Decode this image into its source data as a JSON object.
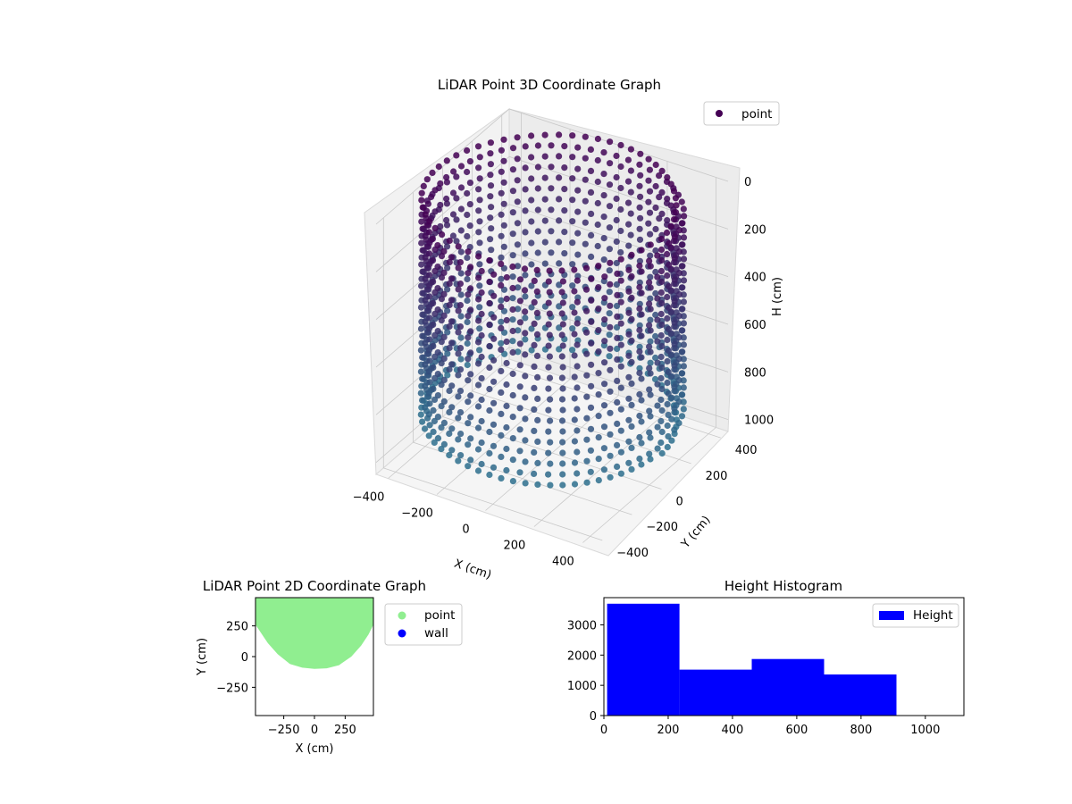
{
  "chart_data": [
    {
      "type": "scatter",
      "projection": "3d",
      "title": "LiDAR Point 3D Coordinate Graph",
      "xlabel": "X (cm)",
      "ylabel": "Y (cm)",
      "zlabel": "H (cm)",
      "x_ticks": [
        "−400",
        "−200",
        "0",
        "200",
        "400"
      ],
      "y_ticks": [
        "−400",
        "−200",
        "0",
        "200",
        "400"
      ],
      "z_ticks": [
        "0",
        "200",
        "400",
        "600",
        "800",
        "1000"
      ],
      "xlim": [
        -450,
        450
      ],
      "ylim": [
        -450,
        450
      ],
      "zlim": [
        1050,
        0
      ],
      "z_axis_inverted": true,
      "grid": true,
      "legend": {
        "placement": "top-right",
        "entries": [
          {
            "label": "point",
            "color": "#440154"
          }
        ]
      },
      "colormap": "viridis",
      "colormap_range_visible": [
        "#440154",
        "#2d708e"
      ],
      "point_cloud": {
        "shape": "cylindrical wall, open toward negative Y",
        "radius_cm": 450,
        "height_range_cm": [
          0,
          910
        ],
        "angle_range_deg": [
          0,
          360
        ]
      }
    },
    {
      "type": "scatter",
      "title": "LiDAR Point 2D Coordinate Graph",
      "xlabel": "X (cm)",
      "ylabel": "Y (cm)",
      "x_ticks": [
        "−250",
        "0",
        "250"
      ],
      "y_ticks": [
        "250",
        "0",
        "−250"
      ],
      "x_tick_values": [
        -250,
        0,
        250
      ],
      "y_tick_values": [
        250,
        0,
        -250
      ],
      "xlim": [
        -480,
        480
      ],
      "ylim": [
        -480,
        480
      ],
      "legend": {
        "placement": "outside-right",
        "entries": [
          {
            "label": "point",
            "color": "#90ee90"
          },
          {
            "label": "wall",
            "color": "#0000ff"
          }
        ]
      },
      "series": [
        {
          "name": "point",
          "color": "#90ee90",
          "region_boundary": [
            [
              -480,
              480
            ],
            [
              -480,
              260
            ],
            [
              -440,
              200
            ],
            [
              -380,
              110
            ],
            [
              -300,
              20
            ],
            [
              -200,
              -60
            ],
            [
              -100,
              -90
            ],
            [
              0,
              -100
            ],
            [
              100,
              -95
            ],
            [
              200,
              -70
            ],
            [
              300,
              0
            ],
            [
              380,
              90
            ],
            [
              440,
              180
            ],
            [
              480,
              260
            ],
            [
              480,
              480
            ]
          ]
        },
        {
          "name": "wall",
          "color": "#0000ff",
          "values": []
        }
      ]
    },
    {
      "type": "bar",
      "title": "Height Histogram",
      "x_ticks": [
        "0",
        "200",
        "400",
        "600",
        "800",
        "1000"
      ],
      "y_ticks": [
        "0",
        "1000",
        "2000",
        "3000"
      ],
      "x_tick_values": [
        0,
        200,
        400,
        600,
        800,
        1000
      ],
      "y_tick_values": [
        0,
        1000,
        2000,
        3000
      ],
      "xlim": [
        0,
        1120
      ],
      "ylim": [
        0,
        3900
      ],
      "legend": {
        "placement": "top-right",
        "entries": [
          {
            "label": "Height",
            "color": "#0000ff"
          }
        ]
      },
      "series": [
        {
          "name": "Height",
          "color": "#0000ff",
          "bins": [
            {
              "x0": 10,
              "x1": 235,
              "count": 3700
            },
            {
              "x0": 235,
              "x1": 460,
              "count": 1520
            },
            {
              "x0": 460,
              "x1": 685,
              "count": 1870
            },
            {
              "x0": 685,
              "x1": 910,
              "count": 1360
            }
          ]
        }
      ]
    }
  ]
}
